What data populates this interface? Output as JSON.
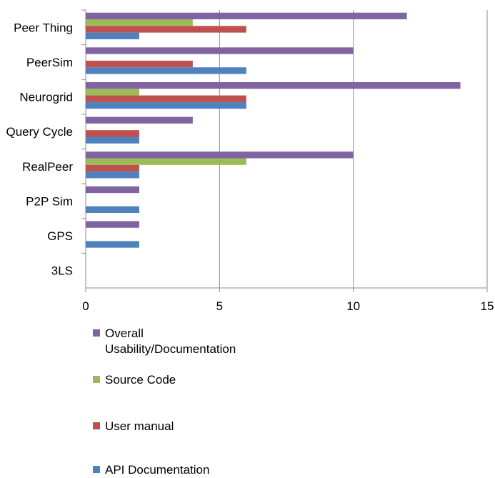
{
  "chart_data": {
    "type": "bar",
    "orientation": "horizontal",
    "title": "",
    "xlabel": "",
    "ylabel": "",
    "categories": [
      "Peer Thing",
      "PeerSim",
      "Neurogrid",
      "Query Cycle",
      "RealPeer",
      "P2P Sim",
      "GPS",
      "3LS"
    ],
    "xlim": [
      0,
      15
    ],
    "x_ticks": [
      "0",
      "5",
      "10",
      "15"
    ],
    "grid": "vertical",
    "legend_position": "bottom",
    "series": [
      {
        "name": "Overall Usability/Documentation",
        "color": "#8064a2",
        "values": [
          12,
          10,
          14,
          4,
          10,
          2,
          2,
          0
        ]
      },
      {
        "name": "Source Code",
        "color": "#9bbb59",
        "values": [
          4,
          0,
          2,
          0,
          6,
          0,
          0,
          0
        ]
      },
      {
        "name": "User manual",
        "color": "#c0504d",
        "values": [
          6,
          4,
          6,
          2,
          2,
          0,
          0,
          0
        ]
      },
      {
        "name": "API Documentation",
        "color": "#4f81bd",
        "values": [
          2,
          6,
          6,
          2,
          2,
          2,
          2,
          0
        ]
      }
    ]
  }
}
